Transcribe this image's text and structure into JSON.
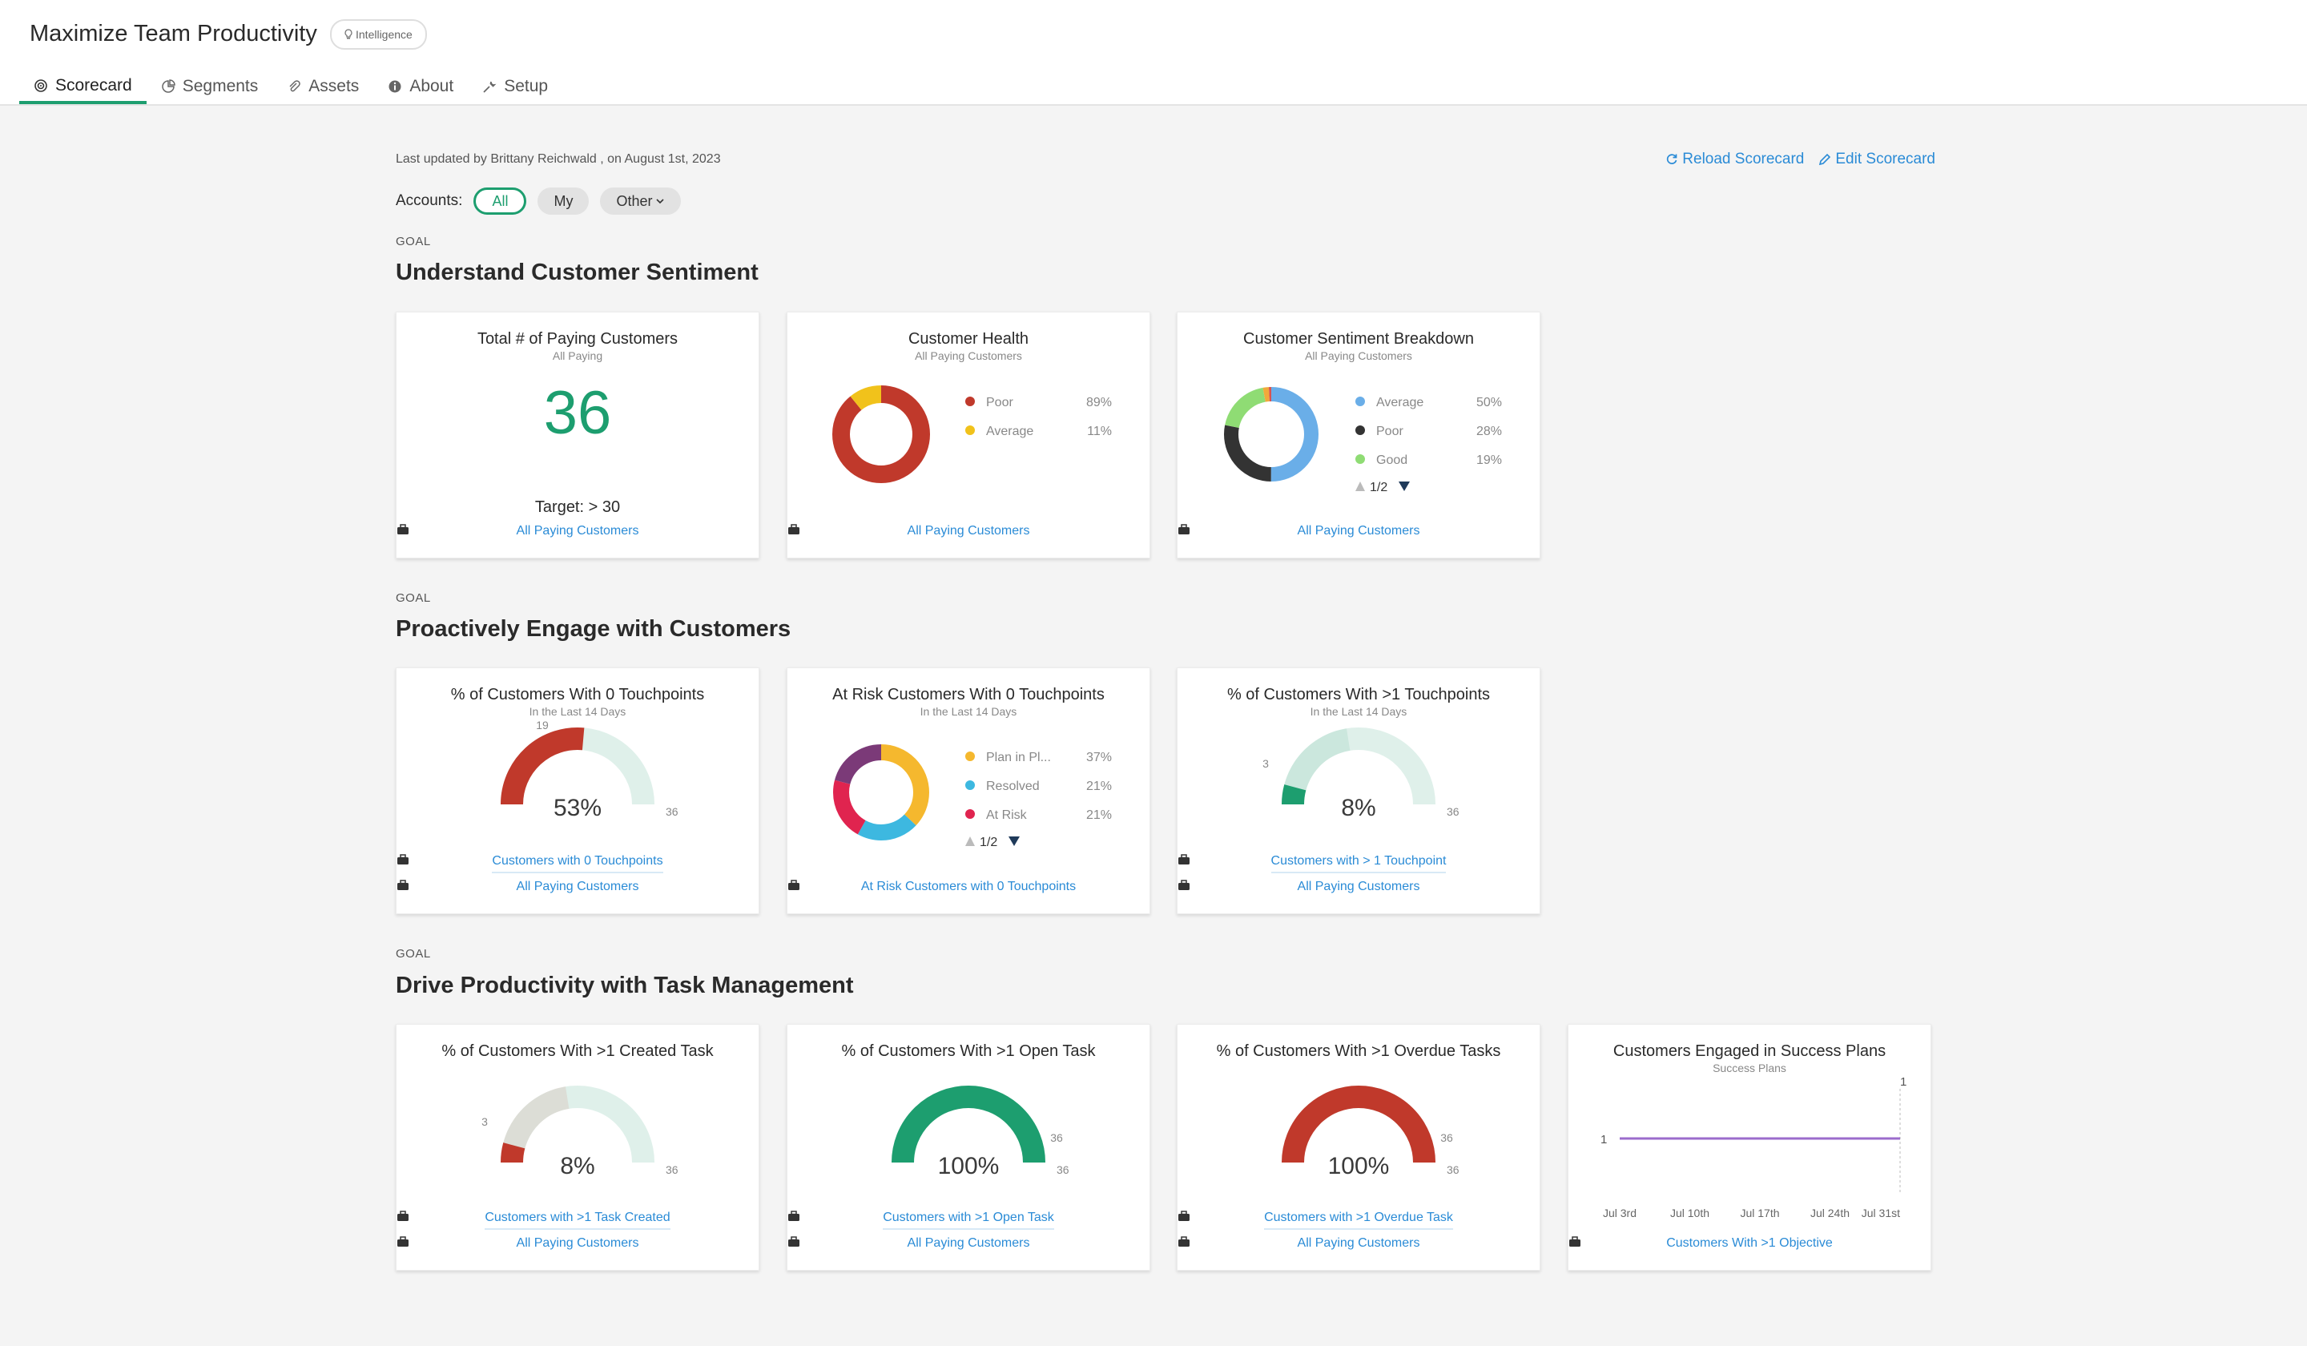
{
  "header": {
    "title": "Maximize Team Productivity",
    "badge": "Intelligence",
    "tabs": [
      {
        "label": "Scorecard",
        "icon": "target-icon"
      },
      {
        "label": "Segments",
        "icon": "pie-icon"
      },
      {
        "label": "Assets",
        "icon": "paperclip-icon"
      },
      {
        "label": "About",
        "icon": "info-icon"
      },
      {
        "label": "Setup",
        "icon": "wrench-icon"
      }
    ]
  },
  "meta": {
    "last_updated": "Last updated by Brittany Reichwald , on August 1st, 2023",
    "reload": "Reload Scorecard",
    "edit": "Edit Scorecard"
  },
  "filters": {
    "label": "Accounts:",
    "options": [
      "All",
      "My",
      "Other"
    ],
    "selected": "All"
  },
  "goals": [
    {
      "label": "GOAL",
      "title": "Understand Customer Sentiment",
      "cards": [
        {
          "title": "Total # of Paying Customers",
          "subtitle": "All Paying",
          "value": "36",
          "target": "Target: > 30",
          "links": [
            "All Paying Customers"
          ]
        },
        {
          "title": "Customer Health",
          "subtitle": "All Paying Customers",
          "chart_data": {
            "type": "pie",
            "labels": [
              "Poor",
              "Average"
            ],
            "values": [
              89,
              11
            ],
            "value_labels": [
              "89%",
              "11%"
            ],
            "colors": [
              "#c0392b",
              "#f1c21b"
            ]
          },
          "links": [
            "All Paying Customers"
          ]
        },
        {
          "title": "Customer Sentiment Breakdown",
          "subtitle": "All Paying Customers",
          "chart_data": {
            "type": "pie",
            "labels": [
              "Average",
              "Poor",
              "Good"
            ],
            "values": [
              50,
              28,
              19
            ],
            "value_labels": [
              "50%",
              "28%",
              "19%"
            ],
            "colors": [
              "#6aaee8",
              "#333333",
              "#8fdc74"
            ],
            "other_slices": [
              {
                "value": 2,
                "color": "#f1a93b"
              },
              {
                "value": 1,
                "color": "#d9534f"
              }
            ],
            "pager": "1/2"
          },
          "links": [
            "All Paying Customers"
          ]
        }
      ]
    },
    {
      "label": "GOAL",
      "title": "Proactively Engage with Customers",
      "cards": [
        {
          "title": "% of Customers With 0 Touchpoints",
          "subtitle": "In the Last 14 Days",
          "chart_data": {
            "type": "gauge",
            "value": 19,
            "max": 36,
            "percent": "53%",
            "value_label": "19",
            "max_label": "36",
            "color": "#c0392b",
            "track": "#dff0ea"
          },
          "links": [
            "Customers with 0 Touchpoints",
            "All Paying Customers"
          ]
        },
        {
          "title": "At Risk Customers With 0 Touchpoints",
          "subtitle": "In the Last 14 Days",
          "chart_data": {
            "type": "pie",
            "labels": [
              "Plan in Pl...",
              "Resolved",
              "At Risk"
            ],
            "values": [
              37,
              21,
              21
            ],
            "value_labels": [
              "37%",
              "21%",
              "21%"
            ],
            "colors": [
              "#f5b82e",
              "#3db8e0",
              "#e0244f"
            ],
            "other_slices": [
              {
                "value": 21,
                "color": "#7b3a78"
              }
            ],
            "pager": "1/2"
          },
          "links": [
            "At Risk Customers with 0 Touchpoints"
          ]
        },
        {
          "title": "% of Customers With >1 Touchpoints",
          "subtitle": "In the Last 14 Days",
          "chart_data": {
            "type": "gauge",
            "value": 3,
            "max": 36,
            "percent": "8%",
            "value_label": "3",
            "max_label": "36",
            "color": "#1d9e6f",
            "track": "#dff0ea"
          },
          "links": [
            "Customers with > 1 Touchpoint",
            "All Paying Customers"
          ]
        }
      ]
    },
    {
      "label": "GOAL",
      "title": "Drive Productivity with Task Management",
      "cards": [
        {
          "title": "% of Customers With >1 Created Task",
          "subtitle": "",
          "chart_data": {
            "type": "gauge",
            "value": 3,
            "max": 36,
            "percent": "8%",
            "value_label": "3",
            "max_label": "36",
            "color": "#c0392b",
            "track": "#dff0ea"
          },
          "links": [
            "Customers with >1 Task Created",
            "All Paying Customers"
          ]
        },
        {
          "title": "% of Customers With >1 Open Task",
          "subtitle": "",
          "chart_data": {
            "type": "gauge",
            "value": 36,
            "max": 36,
            "percent": "100%",
            "value_label": "36",
            "max_label": "36",
            "color": "#1d9e6f",
            "track": "#dff0ea"
          },
          "links": [
            "Customers with >1 Open Task",
            "All Paying Customers"
          ]
        },
        {
          "title": "% of Customers With >1 Overdue Tasks",
          "subtitle": "",
          "chart_data": {
            "type": "gauge",
            "value": 36,
            "max": 36,
            "percent": "100%",
            "value_label": "36",
            "max_label": "36",
            "color": "#c0392b",
            "track": "#dff0ea"
          },
          "links": [
            "Customers with >1 Overdue Task",
            "All Paying Customers"
          ]
        },
        {
          "title": "Customers Engaged in Success Plans",
          "subtitle": "Success Plans",
          "chart_data": {
            "type": "line",
            "x": [
              "Jul 3rd",
              "Jul 10th",
              "Jul 17th",
              "Jul 24th",
              "Jul 31st"
            ],
            "series": [
              {
                "values": [
                  1,
                  1,
                  1,
                  1,
                  1
                ],
                "color": "#9b6ccc"
              }
            ],
            "y_label_left": "1",
            "y_label_right": "1"
          },
          "links": [
            "Customers With >1 Objective"
          ]
        }
      ]
    }
  ]
}
